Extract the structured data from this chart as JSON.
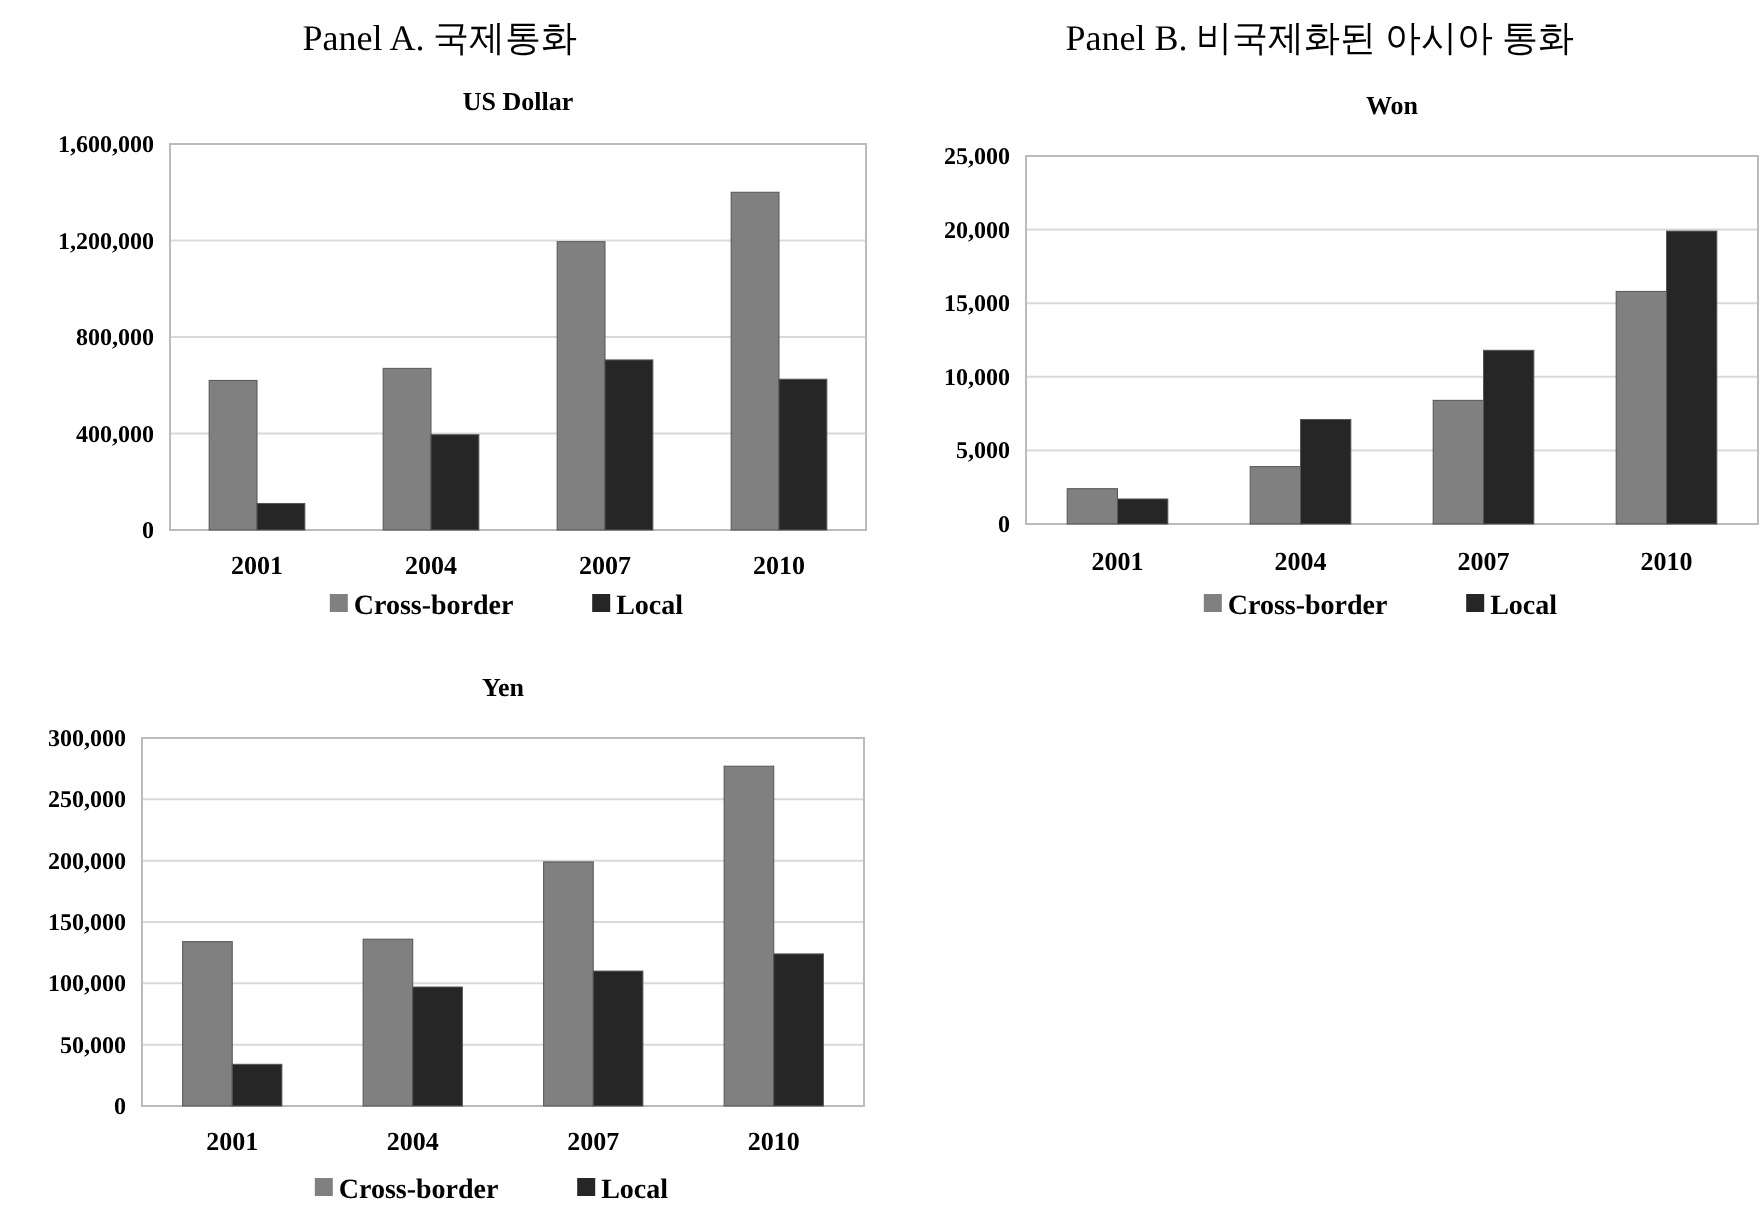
{
  "chart_data": [
    {
      "type": "bar",
      "subtitle": "Panel A. 국제통화",
      "title": "US Dollar",
      "categories": [
        "2001",
        "2004",
        "2007",
        "2010"
      ],
      "series": [
        {
          "name": "Cross-border",
          "color": "#808080",
          "values": [
            620000,
            670000,
            1195000,
            1400000
          ]
        },
        {
          "name": "Local",
          "color": "#262626",
          "values": [
            110000,
            395000,
            705000,
            625000
          ]
        }
      ],
      "ylim": [
        0,
        1600000
      ],
      "yticks": [
        {
          "value": 0,
          "label": "0"
        },
        {
          "value": 400000,
          "label": "400,000"
        },
        {
          "value": 800000,
          "label": "800,000"
        },
        {
          "value": 1200000,
          "label": "1,200,000"
        },
        {
          "value": 1600000,
          "label": "1,600,000"
        }
      ],
      "grid": "y",
      "legend": "bottom"
    },
    {
      "type": "bar",
      "subtitle": "Panel B. 비국제화된 아시아 통화",
      "title": "Won",
      "categories": [
        "2001",
        "2004",
        "2007",
        "2010"
      ],
      "series": [
        {
          "name": "Cross-border",
          "color": "#808080",
          "values": [
            2400,
            3900,
            8400,
            15800
          ]
        },
        {
          "name": "Local",
          "color": "#262626",
          "values": [
            1700,
            7100,
            11800,
            19900
          ]
        }
      ],
      "ylim": [
        0,
        25000
      ],
      "yticks": [
        {
          "value": 0,
          "label": "0"
        },
        {
          "value": 5000,
          "label": "5,000"
        },
        {
          "value": 10000,
          "label": "10,000"
        },
        {
          "value": 15000,
          "label": "15,000"
        },
        {
          "value": 20000,
          "label": "20,000"
        },
        {
          "value": 25000,
          "label": "25,000"
        }
      ],
      "grid": "y",
      "legend": "bottom"
    },
    {
      "type": "bar",
      "title": "Yen",
      "categories": [
        "2001",
        "2004",
        "2007",
        "2010"
      ],
      "series": [
        {
          "name": "Cross-border",
          "color": "#808080",
          "values": [
            134000,
            136000,
            199000,
            277000
          ]
        },
        {
          "name": "Local",
          "color": "#262626",
          "values": [
            34000,
            97000,
            110000,
            124000
          ]
        }
      ],
      "ylim": [
        0,
        300000
      ],
      "yticks": [
        {
          "value": 0,
          "label": "0"
        },
        {
          "value": 50000,
          "label": "50,000"
        },
        {
          "value": 100000,
          "label": "100,000"
        },
        {
          "value": 150000,
          "label": "150,000"
        },
        {
          "value": 200000,
          "label": "200,000"
        },
        {
          "value": 250000,
          "label": "250,000"
        },
        {
          "value": 300000,
          "label": "300,000"
        }
      ],
      "grid": "y",
      "legend": "bottom"
    }
  ]
}
